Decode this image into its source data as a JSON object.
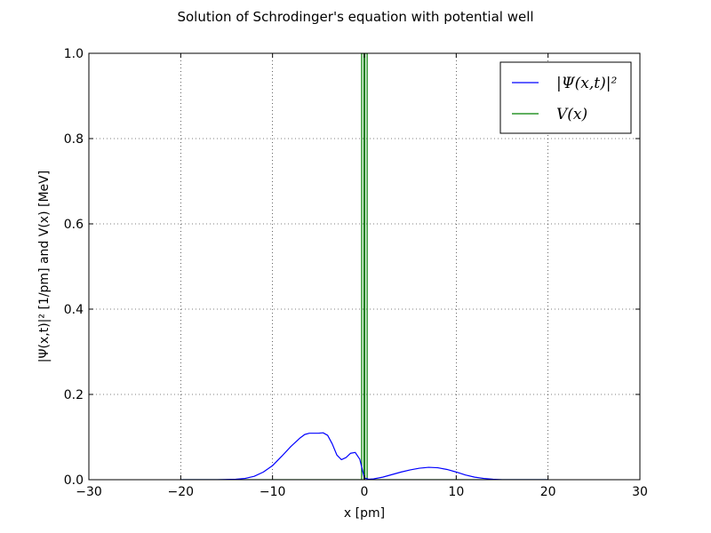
{
  "chart_data": {
    "type": "line",
    "title": "Solution of Schrodinger's equation with potential well",
    "xlabel": "x [pm]",
    "ylabel": "|Ψ(x,t)|²  [1/pm] and V(x)  [MeV]",
    "xlim": [
      -30,
      30
    ],
    "ylim": [
      0,
      1.0
    ],
    "x_ticks": [
      "−30",
      "−20",
      "−10",
      "0",
      "10",
      "20",
      "30"
    ],
    "y_ticks": [
      "0.0",
      "0.2",
      "0.4",
      "0.6",
      "0.8",
      "1.0"
    ],
    "grid": true,
    "legend_position": "top-right",
    "series": [
      {
        "name": "|Ψ(x,t)|²",
        "color": "#0000ff",
        "x": [
          -20,
          -16,
          -14,
          -13,
          -12,
          -11,
          -10,
          -9,
          -8,
          -7,
          -6.5,
          -6,
          -5,
          -4.5,
          -4,
          -3.5,
          -3,
          -2.5,
          -2,
          -1.5,
          -1,
          -0.5,
          0,
          0.5,
          1,
          2,
          3,
          4,
          5,
          6,
          7,
          8,
          9,
          10,
          11,
          12,
          13,
          14,
          15,
          16,
          18,
          20
        ],
        "y": [
          0.0,
          0.0,
          0.001,
          0.003,
          0.008,
          0.018,
          0.033,
          0.055,
          0.078,
          0.098,
          0.106,
          0.109,
          0.109,
          0.11,
          0.104,
          0.084,
          0.058,
          0.047,
          0.052,
          0.062,
          0.064,
          0.048,
          0.004,
          0.001,
          0.002,
          0.006,
          0.012,
          0.018,
          0.023,
          0.027,
          0.029,
          0.028,
          0.024,
          0.018,
          0.011,
          0.006,
          0.003,
          0.001,
          0.0,
          0.0,
          0.0,
          0.0
        ]
      },
      {
        "name": "V(x)",
        "color": "#008000",
        "x": [
          -20,
          -0.3,
          -0.3,
          -0.05,
          -0.05,
          0.05,
          0.05,
          0.3,
          0.3,
          20
        ],
        "y": [
          0,
          0,
          1.0,
          1.0,
          0,
          0,
          1.0,
          1.0,
          0,
          0
        ]
      }
    ]
  }
}
